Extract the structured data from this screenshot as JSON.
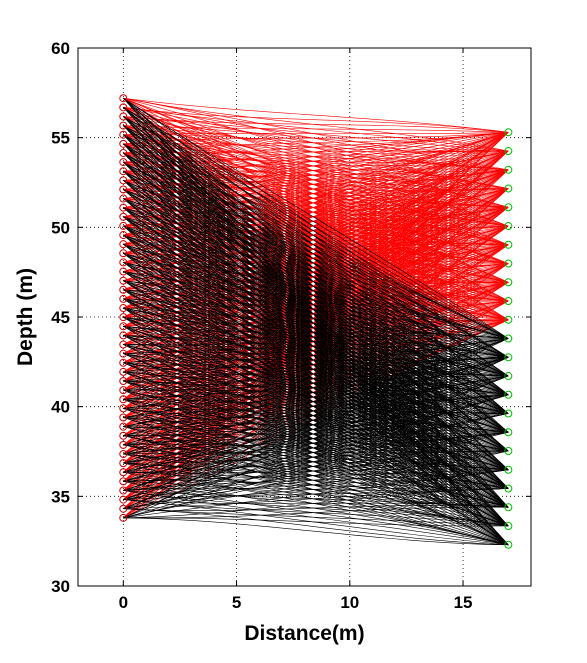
{
  "chart_data": {
    "type": "line",
    "title": "",
    "xlabel": "Distance(m)",
    "ylabel": "Depth (m)",
    "xlim": [
      -2,
      18
    ],
    "ylim": [
      30,
      60
    ],
    "xticks": [
      0,
      5,
      10,
      15
    ],
    "yticks": [
      30,
      35,
      40,
      45,
      50,
      55,
      60
    ],
    "grid": true,
    "grid_style": "dotted",
    "source_x": 0,
    "receiver_x": 17,
    "source_depths": {
      "start": 57.2,
      "end": 33.8,
      "count": 47
    },
    "receiver_depths": {
      "start": 55.3,
      "end": 32.3,
      "count": 23
    },
    "series": [
      {
        "color": "#ff0000",
        "description_from_picture": "ray paths to upper receivers (45-55 m)",
        "receiver_depth_range": [
          44.2,
          55.3
        ]
      },
      {
        "color": "#000000",
        "description_from_picture": "ray paths to lower receivers (32-44 m)",
        "receiver_depth_range": [
          32.3,
          43.2
        ]
      }
    ],
    "source_marker_color": "#ff0000",
    "receiver_marker_color": "#00cc00"
  },
  "colors": {
    "red_rays": "#ff0000",
    "black_rays": "#000000",
    "source_marker": "#cc0000",
    "receiver_marker": "#00bb00",
    "grid": "#000000"
  }
}
